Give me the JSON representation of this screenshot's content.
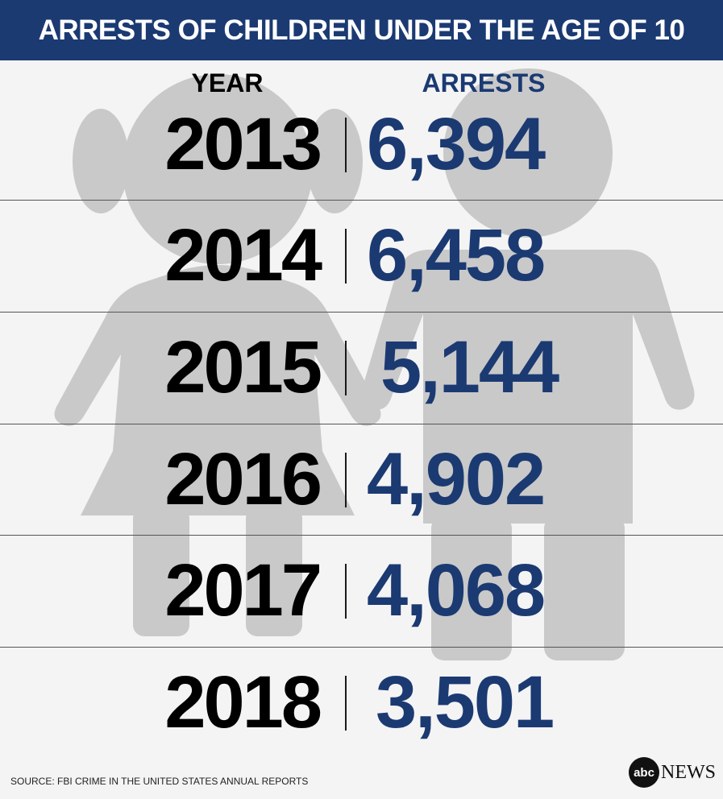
{
  "title": "ARRESTS OF CHILDREN UNDER THE AGE OF 10",
  "column_headers": {
    "year": "YEAR",
    "arrests": "ARRESTS"
  },
  "source": "SOURCE: FBI CRIME IN THE UNITED STATES ANNUAL REPORTS",
  "logo": {
    "mark": "abc",
    "word": "NEWS"
  },
  "colors": {
    "header": "#1b3a72",
    "value": "#1b3a72",
    "year": "#000000",
    "silhouette": "#c9c9c9",
    "background": "#f4f4f4"
  },
  "chart_data": {
    "type": "table",
    "title": "ARRESTS OF CHILDREN UNDER THE AGE OF 10",
    "columns": [
      "YEAR",
      "ARRESTS"
    ],
    "rows": [
      {
        "year": "2013",
        "arrests": "6,394"
      },
      {
        "year": "2014",
        "arrests": "6,458"
      },
      {
        "year": "2015",
        "arrests": "5,144"
      },
      {
        "year": "2016",
        "arrests": "4,902"
      },
      {
        "year": "2017",
        "arrests": "4,068"
      },
      {
        "year": "2018",
        "arrests": "3,501"
      }
    ]
  }
}
